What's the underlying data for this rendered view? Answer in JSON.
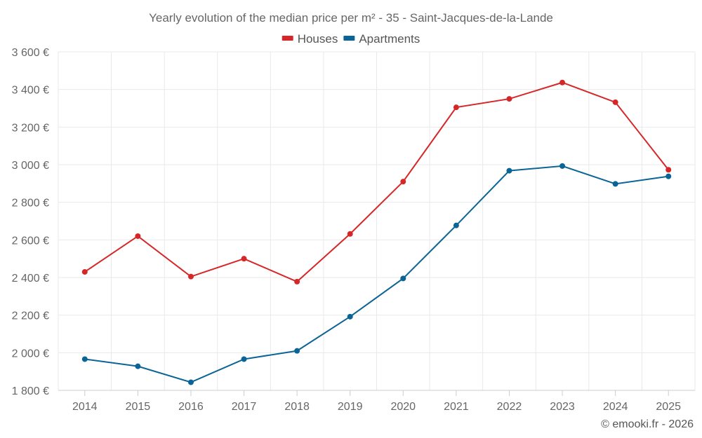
{
  "chart_data": {
    "type": "line",
    "title": "Yearly evolution of the median price per m² - 35 - Saint-Jacques-de-la-Lande",
    "categories": [
      "2014",
      "2015",
      "2016",
      "2017",
      "2018",
      "2019",
      "2020",
      "2021",
      "2022",
      "2023",
      "2024",
      "2025"
    ],
    "series": [
      {
        "name": "Houses",
        "color": "#d62728",
        "values": [
          2430,
          2620,
          2405,
          2500,
          2378,
          2632,
          2910,
          3305,
          3350,
          3437,
          3332,
          2973
        ]
      },
      {
        "name": "Apartments",
        "color": "#0b6496",
        "values": [
          1966,
          1928,
          1843,
          1966,
          2010,
          2192,
          2395,
          2677,
          2968,
          2993,
          2898,
          2938
        ]
      }
    ],
    "ylim": [
      1800,
      3600
    ],
    "yticks": [
      1800,
      2000,
      2200,
      2400,
      2600,
      2800,
      3000,
      3200,
      3400,
      3600
    ],
    "ytick_labels": [
      "1 800 €",
      "2 000 €",
      "2 200 €",
      "2 400 €",
      "2 600 €",
      "2 800 €",
      "3 000 €",
      "3 200 €",
      "3 400 €",
      "3 600 €"
    ],
    "xlabel": "",
    "ylabel": "",
    "grid": true,
    "legend_position": "top-center"
  },
  "credit": "© emooki.fr - 2026"
}
